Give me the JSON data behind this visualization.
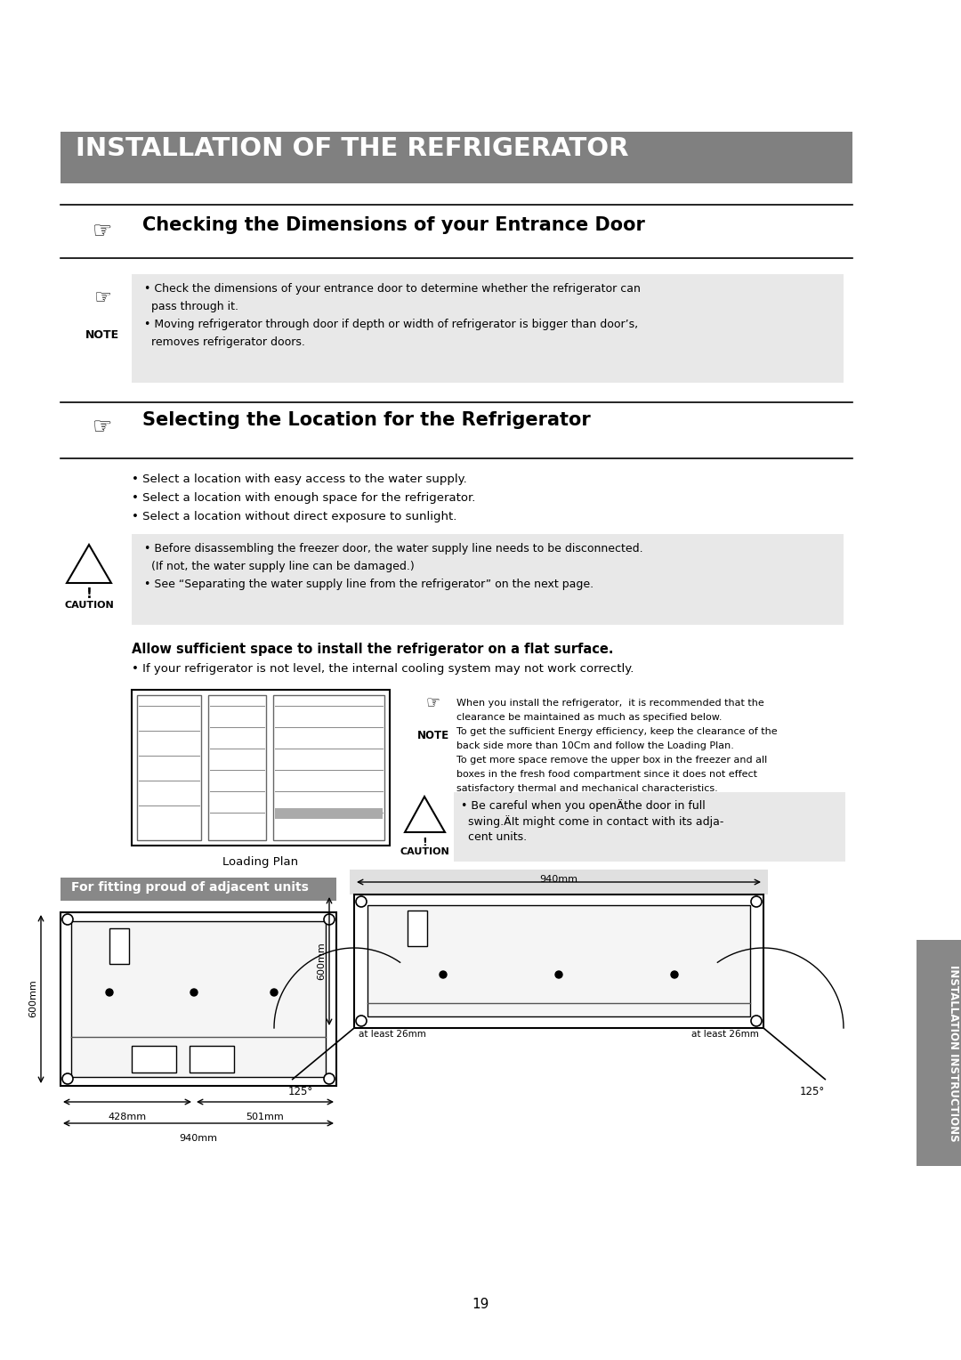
{
  "bg_color": "#ffffff",
  "title_bar_color": "#808080",
  "title_text": "INSTALLATION OF THE REFRIGERATOR",
  "title_text_color": "#ffffff",
  "section1_title": "Checking the Dimensions of your Entrance Door",
  "section2_title": "Selecting the Location for the Refrigerator",
  "note_box_color": "#e8e8e8",
  "caution_box_color": "#e8e8e8",
  "note1_line1": "• Check the dimensions of your entrance door to determine whether the refrigerator can",
  "note1_line2": "  pass through it.",
  "note1_line3": "• Moving refrigerator through door if depth or width of refrigerator is bigger than door’s,",
  "note1_line4": "  removes refrigerator doors.",
  "select_line1": "• Select a location with easy access to the water supply.",
  "select_line2": "• Select a location with enough space for the refrigerator.",
  "select_line3": "• Select a location without direct exposure to sunlight.",
  "caution_line1": "• Before disassembling the freezer door, the water supply line needs to be disconnected.",
  "caution_line2": "  (If not, the water supply line can be damaged.)",
  "caution_line3": "• See “Separating the water supply line from the refrigerator” on the next page.",
  "flat_surface_bold": "Allow sufficient space to install the refrigerator on a flat surface.",
  "flat_surface_bullet": "• If your refrigerator is not level, the internal cooling system may not work correctly.",
  "loading_plan_label": "Loading Plan",
  "note2_line1": "When you install the refrigerator,  it is recommended that the",
  "note2_line2": "clearance be maintained as much as specified below.",
  "note2_line3": "To get the sufficient Energy efficiency, keep the clearance of the",
  "note2_line4": "back side more than 10Cm and follow the Loading Plan.",
  "note2_line5": "To get more space remove the upper box in the freezer and all",
  "note2_line6": "boxes in the fresh food compartment since it does not effect",
  "note2_line7": "satisfactory thermal and mechanical characteristics.",
  "caution2_line1": "• Be careful when you openÄthe door in full",
  "caution2_line2": "  swing.ÄIt might come in contact with its adja-",
  "caution2_line3": "  cent units.",
  "fitting_label": "For fitting proud of adjacent units",
  "fitting_label_bg": "#888888",
  "fitting_label_text_color": "#ffffff",
  "dim_940mm": "940mm",
  "dim_428mm": "428mm",
  "dim_501mm": "501mm",
  "dim_600mm": "600mm",
  "dim_at_least_26mm": "at least 26mm",
  "dim_125": "125°",
  "page_number": "19",
  "side_tab_color": "#888888",
  "side_tab_text": "INSTALLATION INSTRUCTIONS"
}
